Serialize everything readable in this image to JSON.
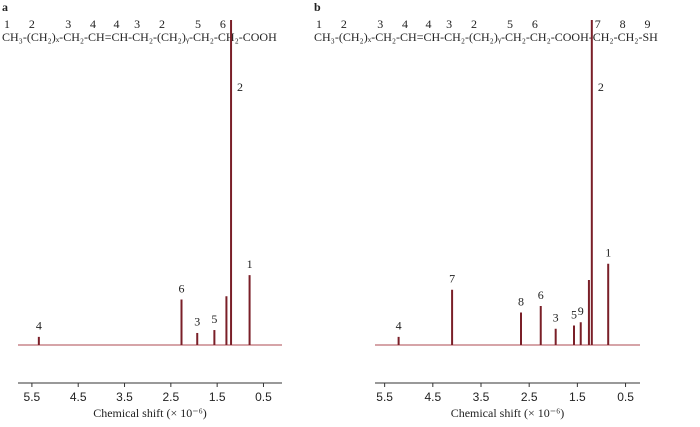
{
  "chart_data": [
    {
      "type": "spectrum",
      "panel": "a",
      "formula": [
        {
          "num": "1",
          "text": "CH₃-"
        },
        {
          "num": "2",
          "text": "(CH₂)ₓ-"
        },
        {
          "num": "3",
          "text": "CH₂-"
        },
        {
          "num": "4",
          "text": "CH="
        },
        {
          "num": "4",
          "text": "CH-"
        },
        {
          "num": "3",
          "text": "CH₂-"
        },
        {
          "num": "2",
          "text": "(CH₂)ᵧ-"
        },
        {
          "num": "5",
          "text": "CH₂-"
        },
        {
          "num": "6",
          "text": "CH₂"
        },
        {
          "text": "-COOH"
        }
      ],
      "x": [
        5.35,
        2.27,
        1.93,
        1.56,
        1.3,
        1.2,
        0.8
      ],
      "values": [
        2.5,
        14,
        3.7,
        4.6,
        15,
        100,
        21.5
      ],
      "peak_labels": [
        "4",
        "6",
        "3",
        "5",
        null,
        "2",
        "1"
      ],
      "xlim": [
        5.8,
        0.1
      ],
      "ylim": [
        0,
        100
      ],
      "xticks": [
        5.5,
        4.5,
        3.5,
        2.5,
        1.5,
        0.5
      ],
      "xlabel": "Chemical shift (× 10⁻⁶)",
      "color": "#7a1f28",
      "baseline_color": "#c9868c"
    },
    {
      "type": "spectrum",
      "panel": "b",
      "formula": [
        {
          "num": "1",
          "text": "CH₃-"
        },
        {
          "num": "2",
          "text": "(CH₂)ₓ-"
        },
        {
          "num": "3",
          "text": "CH₂-"
        },
        {
          "num": "4",
          "text": "CH="
        },
        {
          "num": "4",
          "text": "CH-"
        },
        {
          "num": "3",
          "text": "CH₂-"
        },
        {
          "num": "2",
          "text": "(CH₂)ᵧ-"
        },
        {
          "num": "5",
          "text": "CH₂-"
        },
        {
          "num": "6",
          "text": "CH₂"
        },
        {
          "text": "-COOH-"
        },
        {
          "num": "7",
          "text": "CH₂-"
        },
        {
          "num": "8",
          "text": "CH₂-"
        },
        {
          "num": "9",
          "text": "SH"
        }
      ],
      "x": [
        5.21,
        4.1,
        2.67,
        2.26,
        1.95,
        1.57,
        1.43,
        1.26,
        1.2,
        0.86
      ],
      "values": [
        2.5,
        17,
        10,
        12,
        5,
        6,
        7,
        20,
        100,
        25
      ],
      "peak_labels": [
        "4",
        "7",
        "8",
        "6",
        "3",
        "5",
        "9",
        null,
        "2",
        "1"
      ],
      "xlim": [
        5.7,
        0.2
      ],
      "ylim": [
        0,
        100
      ],
      "xticks": [
        5.5,
        4.5,
        3.5,
        2.5,
        1.5,
        0.5
      ],
      "xlabel": "Chemical shift (× 10⁻⁶)",
      "color": "#7a1f28",
      "baseline_color": "#c9868c"
    }
  ]
}
